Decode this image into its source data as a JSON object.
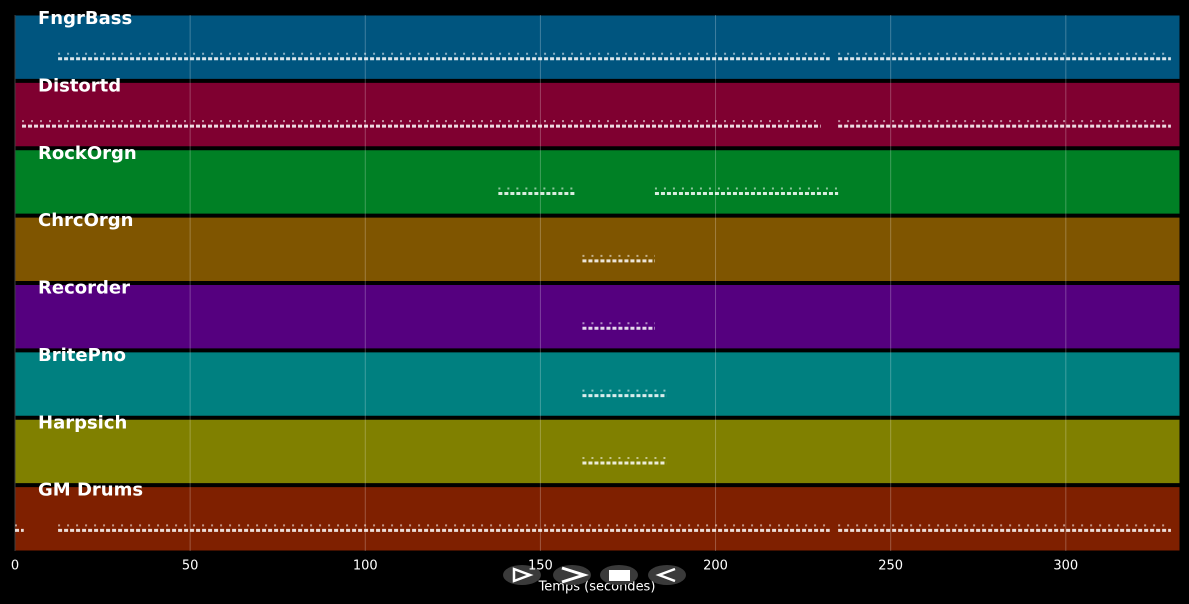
{
  "chart_data": {
    "type": "pianoroll",
    "xlabel": "Temps (secondes)",
    "xlim": [
      0,
      332.6
    ],
    "xticks": [
      0,
      50,
      100,
      150,
      200,
      250,
      300
    ],
    "grid": true,
    "series": [
      {
        "name": "FngrBass",
        "color": "#00557f",
        "segments": [
          [
            12.3,
            232.6
          ],
          [
            235,
            330
          ]
        ]
      },
      {
        "name": "Distortd",
        "color": "#7f0030",
        "segments": [
          [
            2,
            230
          ],
          [
            235,
            330
          ]
        ]
      },
      {
        "name": "RockOrgn",
        "color": "#008025",
        "segments": [
          [
            138,
            160
          ],
          [
            182.7,
            235
          ]
        ]
      },
      {
        "name": "ChrcOrgn",
        "color": "#7f5500",
        "segments": [
          [
            162,
            182.7
          ]
        ]
      },
      {
        "name": "Recorder",
        "color": "#55007f",
        "segments": [
          [
            162,
            182.7
          ]
        ]
      },
      {
        "name": "BritePno",
        "color": "#008080",
        "segments": [
          [
            162,
            186
          ]
        ]
      },
      {
        "name": "Harpsich",
        "color": "#808000",
        "segments": [
          [
            162,
            186
          ]
        ]
      },
      {
        "name": "GM Drums",
        "color": "#7f2000",
        "segments": [
          [
            0,
            2.5
          ],
          [
            12.3,
            232.6
          ],
          [
            235,
            330
          ]
        ]
      }
    ]
  }
}
